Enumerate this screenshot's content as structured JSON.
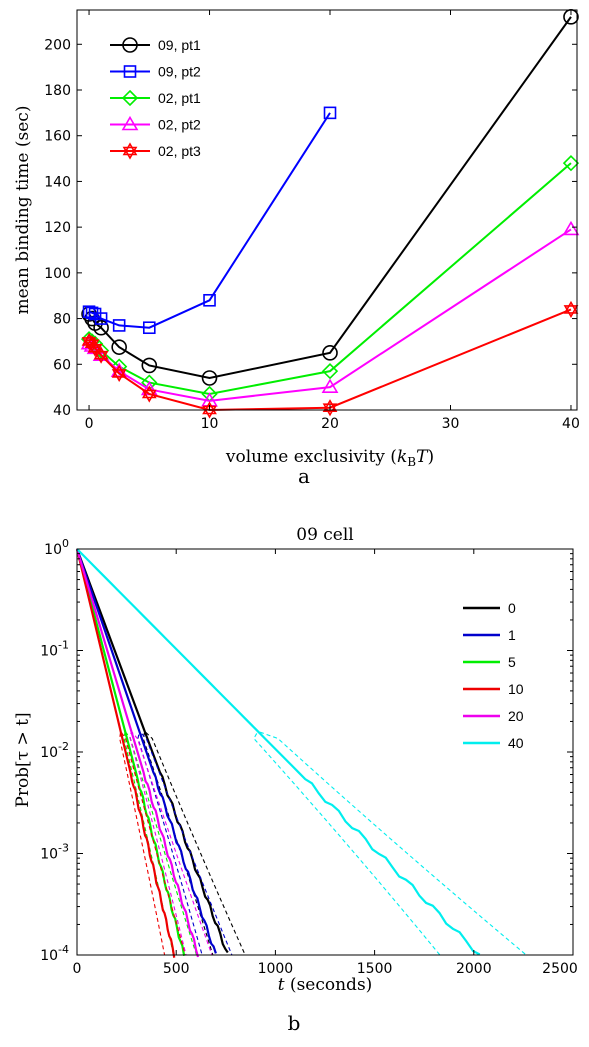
{
  "chart_data": [
    {
      "type": "line",
      "panel_label": "a",
      "xlabel": "volume exclusivity (k_B T)",
      "xlabel_main": "volume exclusivity (",
      "xlabel_k": "k",
      "xlabel_sub": "B",
      "xlabel_T": "T",
      "xlabel_close": ")",
      "ylabel": "mean binding time (sec)",
      "xlim": [
        -1,
        40.5
      ],
      "ylim": [
        40,
        215
      ],
      "xticks": [
        0,
        10,
        20,
        30,
        40
      ],
      "yticks": [
        40,
        60,
        80,
        100,
        120,
        140,
        160,
        180,
        200
      ],
      "legend_position": "top-left",
      "series": [
        {
          "name": "09, pt1",
          "color": "#000000",
          "marker": "circle",
          "x": [
            0,
            0.25,
            0.5,
            1,
            2.5,
            5,
            10,
            20,
            40
          ],
          "y": [
            82,
            80,
            78,
            76,
            67.5,
            59.5,
            54,
            65,
            212
          ]
        },
        {
          "name": "09, pt2",
          "color": "#0000ff",
          "marker": "square",
          "x": [
            0,
            0.25,
            0.5,
            1,
            2.5,
            5,
            10,
            20
          ],
          "y": [
            83,
            82.5,
            82,
            80,
            77,
            76,
            88,
            170
          ]
        },
        {
          "name": "02, pt1",
          "color": "#00ee00",
          "marker": "diamond",
          "x": [
            0,
            0.25,
            0.5,
            1,
            2.5,
            5,
            10,
            20,
            40
          ],
          "y": [
            71,
            70,
            69,
            66,
            59,
            52,
            47,
            57,
            148
          ]
        },
        {
          "name": "02, pt2",
          "color": "#ff00ff",
          "marker": "triangle",
          "x": [
            0,
            0.25,
            0.5,
            1,
            2.5,
            5,
            10,
            20,
            40
          ],
          "y": [
            69,
            68,
            67,
            64,
            57,
            49,
            44,
            50,
            119
          ]
        },
        {
          "name": "02, pt3",
          "color": "#ff0000",
          "marker": "hexagram",
          "x": [
            0,
            0.25,
            0.5,
            1,
            2.5,
            5,
            10,
            20,
            40
          ],
          "y": [
            70,
            69,
            67,
            64,
            56,
            47,
            40,
            41,
            84
          ]
        }
      ]
    },
    {
      "type": "line",
      "panel_label": "b",
      "title": "09 cell",
      "xlabel": "t (seconds)",
      "xlabel_t": "t",
      "xlabel_rest": " (seconds)",
      "ylabel": "Prob[τ > t]",
      "yscale": "log",
      "xlim": [
        0,
        2500
      ],
      "ylim": [
        0.0001,
        1
      ],
      "xticks": [
        0,
        500,
        1000,
        1500,
        2000,
        2500
      ],
      "ytick_base": "10",
      "ytick_exponents": [
        "0",
        "-1",
        "-2",
        "-3",
        "-4"
      ],
      "legend_position": "right",
      "dashed_bands": true,
      "series": [
        {
          "name": "0",
          "color": "#000000",
          "x_at_1e-4": 760
        },
        {
          "name": "1",
          "color": "#0000cc",
          "x_at_1e-4": 700
        },
        {
          "name": "5",
          "color": "#00ee00",
          "x_at_1e-4": 540
        },
        {
          "name": "10",
          "color": "#ee0000",
          "x_at_1e-4": 490
        },
        {
          "name": "20",
          "color": "#ee00ee",
          "x_at_1e-4": 610
        },
        {
          "name": "40",
          "color": "#00eeee",
          "x_at_1e-4": 2030
        }
      ]
    }
  ]
}
